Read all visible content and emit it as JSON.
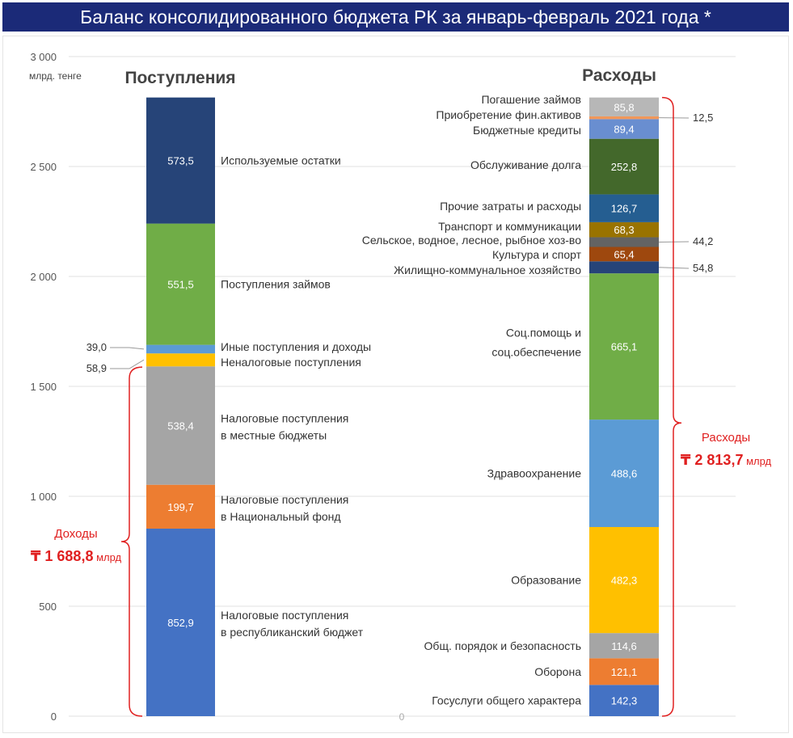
{
  "header": {
    "title": "Баланс консолидированного бюджета РК за январь-февраль 2021 года *"
  },
  "chart_data": {
    "type": "bar",
    "stacked": true,
    "ylim": [
      0,
      3000
    ],
    "y_ticks": [
      {
        "value": 0,
        "label": "0"
      },
      {
        "value": 500,
        "label": "500"
      },
      {
        "value": 1000,
        "label": "1 000"
      },
      {
        "value": 1500,
        "label": "1 500"
      },
      {
        "value": 2000,
        "label": "2 000"
      },
      {
        "value": 2500,
        "label": "2 500"
      },
      {
        "value": 3000,
        "label": "3 000"
      }
    ],
    "y_unit": "млрд. тенге",
    "grid": true,
    "columns": [
      {
        "title": "Поступления",
        "segments": [
          {
            "name": "Налоговые поступления|в республиканский бюджет",
            "value": 852.9,
            "label": "852,9",
            "color": "#4472c4"
          },
          {
            "name": "Налоговые поступления|в Национальный фонд",
            "value": 199.7,
            "label": "199,7",
            "color": "#ed7d31"
          },
          {
            "name": "Налоговые поступления|в местные бюджеты",
            "value": 538.4,
            "label": "538,4",
            "color": "#a5a5a5"
          },
          {
            "name": "Неналоговые поступления",
            "value": 58.9,
            "label": "58,9",
            "color": "#ffc000"
          },
          {
            "name": "Иные поступления и доходы",
            "value": 39.0,
            "label": "39,0",
            "color": "#5b9bd5"
          },
          {
            "name": "Поступления займов",
            "value": 551.5,
            "label": "551,5",
            "color": "#70ad47"
          },
          {
            "name": "Используемые остатки",
            "value": 573.5,
            "label": "573,5",
            "color": "#264478"
          }
        ],
        "total": {
          "name": "Доходы",
          "value": "₸ 1 688,8",
          "unit": "млрд"
        }
      },
      {
        "title": "Расходы",
        "segments": [
          {
            "name": "Госуслуги общего характера",
            "value": 142.3,
            "label": "142,3",
            "color": "#4472c4"
          },
          {
            "name": "Оборона",
            "value": 121.1,
            "label": "121,1",
            "color": "#ed7d31"
          },
          {
            "name": "Общ. порядок и безопасность",
            "value": 114.6,
            "label": "114,6",
            "color": "#a5a5a5"
          },
          {
            "name": "Образование",
            "value": 482.3,
            "label": "482,3",
            "color": "#ffc000"
          },
          {
            "name": "Здравоохранение",
            "value": 488.6,
            "label": "488,6",
            "color": "#5b9bd5"
          },
          {
            "name": "Соц.помощь и|соц.обеспечение",
            "value": 665.1,
            "label": "665,1",
            "color": "#70ad47"
          },
          {
            "name": "Жилищно-коммунальное хозяйство",
            "value": 54.8,
            "label": "54,8",
            "color": "#264478"
          },
          {
            "name": "Культура и спорт",
            "value": 65.4,
            "label": "65,4",
            "color": "#9e480e"
          },
          {
            "name": "Сельское, водное, лесное, рыбное хоз-во",
            "value": 44.2,
            "label": "44,2",
            "color": "#636363"
          },
          {
            "name": "Транспорт и коммуникации",
            "value": 68.3,
            "label": "68,3",
            "color": "#997300"
          },
          {
            "name": "Прочие затраты и расходы",
            "value": 126.7,
            "label": "126,7",
            "color": "#255e91"
          },
          {
            "name": "Обслуживание долга",
            "value": 252.8,
            "label": "252,8",
            "color": "#43682b"
          },
          {
            "name": "Бюджетные кредиты",
            "value": 89.4,
            "label": "89,4",
            "color": "#698ed0"
          },
          {
            "name": "Приобретение фин.активов",
            "value": 12.5,
            "label": "12,5",
            "color": "#f1975a"
          },
          {
            "name": "Погашение займов",
            "value": 85.8,
            "label": "85,8",
            "color": "#b7b7b7"
          }
        ],
        "total": {
          "name": "Расходы",
          "value": "₸ 2 813,7",
          "unit": "млрд"
        }
      }
    ],
    "stray_label": "0"
  }
}
